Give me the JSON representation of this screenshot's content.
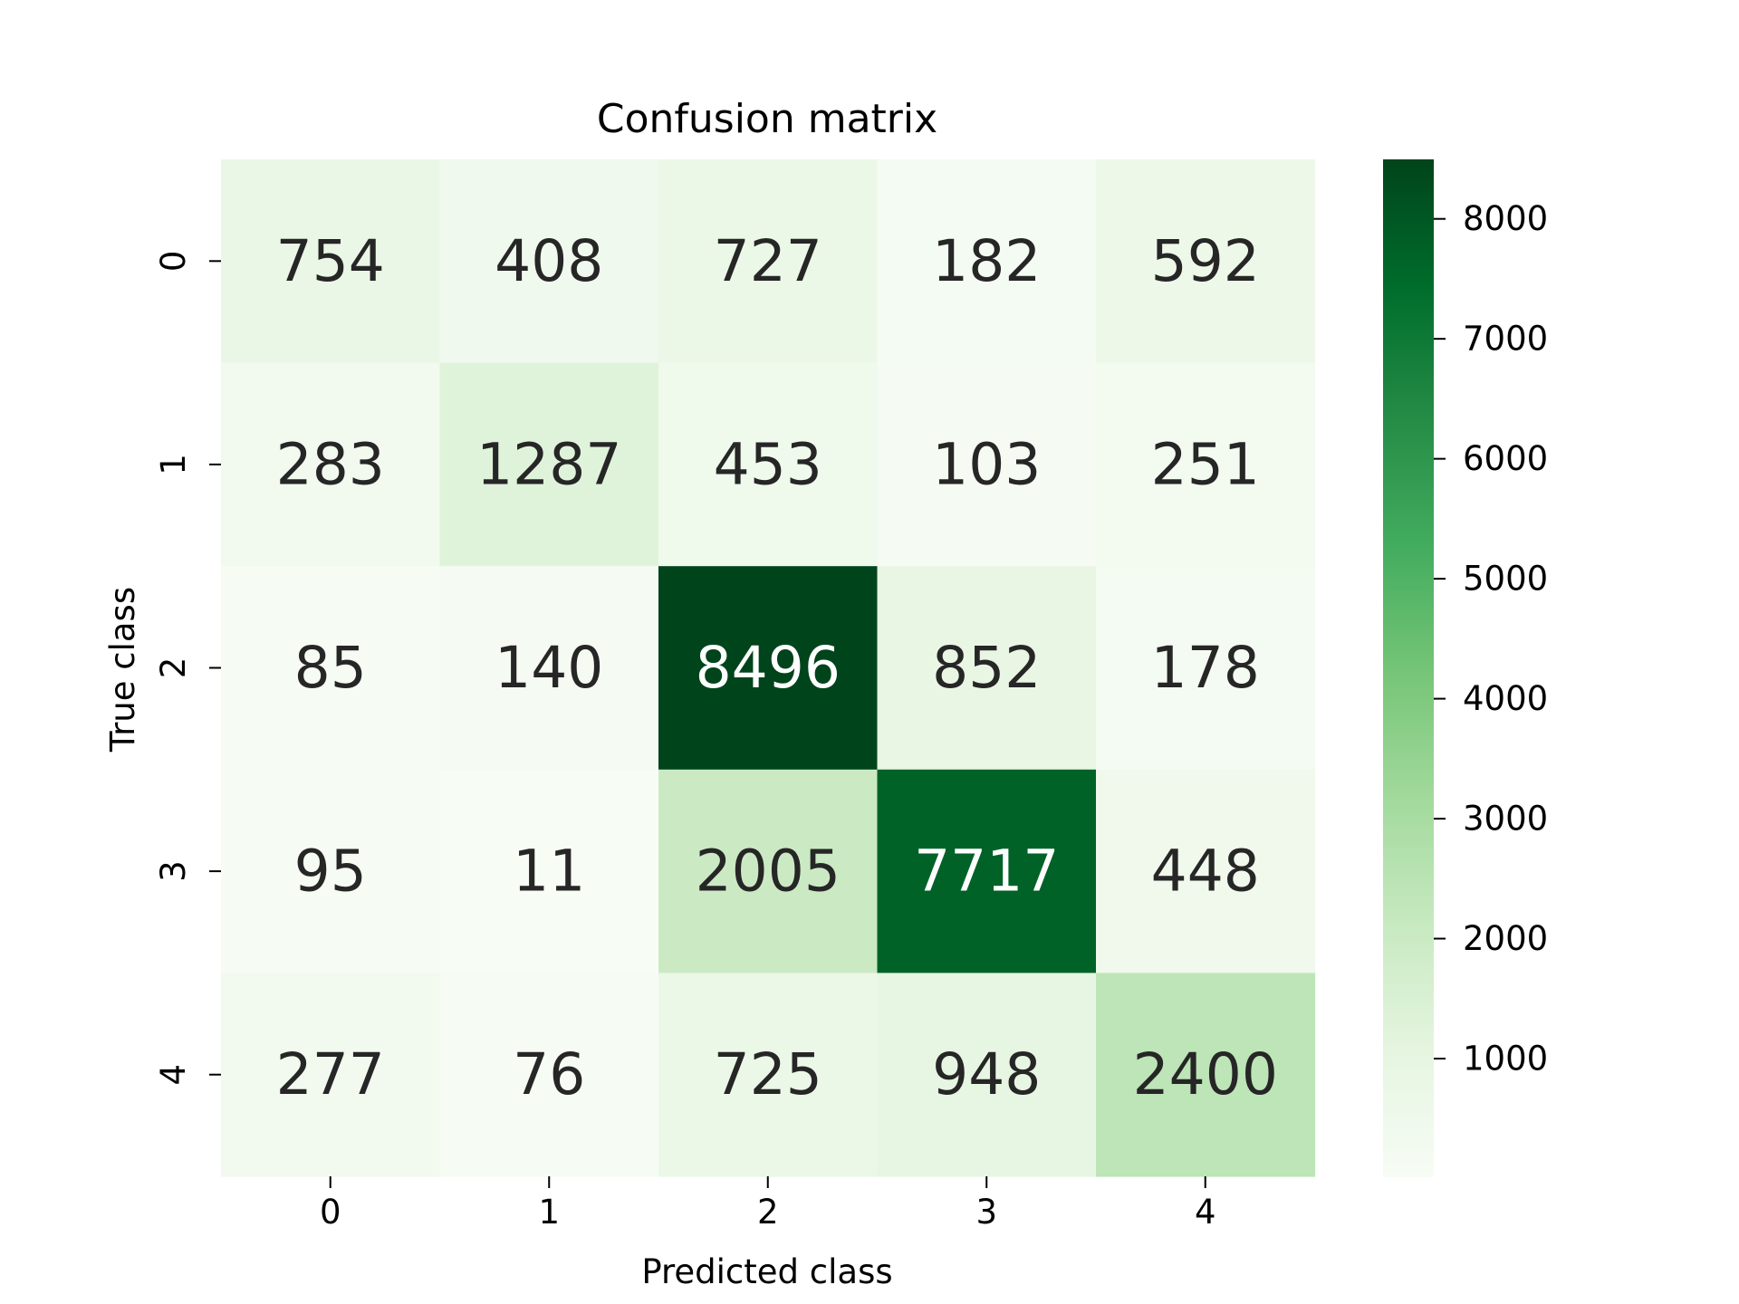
{
  "chart_data": {
    "type": "heatmap",
    "title": "Confusion matrix",
    "xlabel": "Predicted class",
    "ylabel": "True class",
    "x_categories": [
      "0",
      "1",
      "2",
      "3",
      "4"
    ],
    "y_categories": [
      "0",
      "1",
      "2",
      "3",
      "4"
    ],
    "values": [
      [
        754,
        408,
        727,
        182,
        592
      ],
      [
        283,
        1287,
        453,
        103,
        251
      ],
      [
        85,
        140,
        8496,
        852,
        178
      ],
      [
        95,
        11,
        2005,
        7717,
        448
      ],
      [
        277,
        76,
        725,
        948,
        2400
      ]
    ],
    "colorbar": {
      "min": 11,
      "max": 8496,
      "ticks": [
        1000,
        2000,
        3000,
        4000,
        5000,
        6000,
        7000,
        8000
      ],
      "tick_labels": [
        "1000",
        "2000",
        "3000",
        "4000",
        "5000",
        "6000",
        "7000",
        "8000"
      ]
    },
    "colormap": "Greens",
    "colormap_stops": [
      "#f7fcf5",
      "#e5f5e0",
      "#c7e9c0",
      "#a1d99b",
      "#74c476",
      "#41ab5d",
      "#238b45",
      "#006d2c",
      "#00441b"
    ],
    "annotation_dark_color": "#262626",
    "annotation_light_color": "#ffffff"
  }
}
